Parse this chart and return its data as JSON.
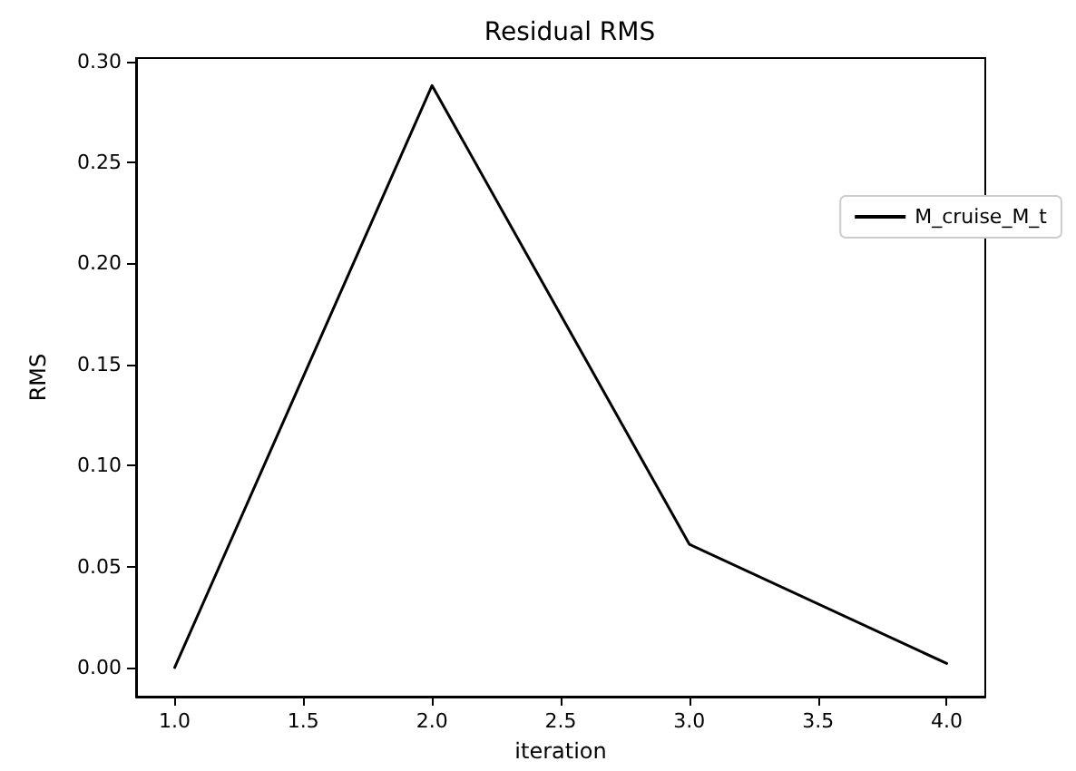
{
  "chart_data": {
    "type": "line",
    "title": "Residual RMS",
    "xlabel": "iteration",
    "ylabel": "RMS",
    "x": [
      1,
      2,
      3,
      4
    ],
    "series": [
      {
        "name": "M_cruise_M_t",
        "color": "#000000",
        "values": [
          0,
          0.288,
          0.061,
          0.002
        ]
      }
    ],
    "xlim": [
      0.85,
      4.15
    ],
    "xticks": [
      {
        "value": 1,
        "label": "1.0"
      },
      {
        "value": 1.5,
        "label": "1.5"
      },
      {
        "value": 2,
        "label": "2.0"
      },
      {
        "value": 2.5,
        "label": "2.5"
      },
      {
        "value": 3,
        "label": "3.0"
      },
      {
        "value": 3.5,
        "label": "3.5"
      },
      {
        "value": 4,
        "label": "4.0"
      }
    ],
    "ylim": [
      -0.0144,
      0.3016
    ],
    "yticks": [
      {
        "value": 0,
        "label": "0.00"
      },
      {
        "value": 0.05,
        "label": "0.05"
      },
      {
        "value": 0.1,
        "label": "0.10"
      },
      {
        "value": 0.15,
        "label": "0.15"
      },
      {
        "value": 0.2,
        "label": "0.20"
      },
      {
        "value": 0.25,
        "label": "0.25"
      },
      {
        "value": 0.3,
        "label": "0.30"
      }
    ],
    "grid": false,
    "legend": "top right",
    "marker": "none",
    "line_style": "solid"
  }
}
